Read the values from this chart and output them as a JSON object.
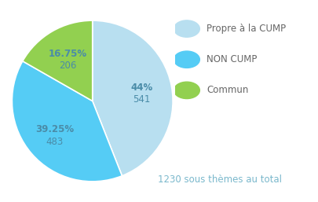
{
  "slices": [
    {
      "label": "Propre à la CUMP",
      "pct": 44.0,
      "value": 541,
      "color": "#b8dff0",
      "text_pct": "44%",
      "text_val": "541"
    },
    {
      "label": "NON CUMP",
      "pct": 39.25,
      "value": 483,
      "color": "#55ccf5",
      "text_pct": "39.25%",
      "text_val": "483"
    },
    {
      "label": "Commun",
      "pct": 16.75,
      "value": 206,
      "color": "#92d050",
      "text_pct": "16.75%",
      "text_val": "206"
    }
  ],
  "total_text": "1230 sous thèmes au total",
  "total_text_color": "#7ab8cc",
  "label_color": "#4a8ca8",
  "background_color": "#ffffff",
  "startangle": 90,
  "legend_fontsize": 8.5,
  "annotation_fontsize": 8.5
}
